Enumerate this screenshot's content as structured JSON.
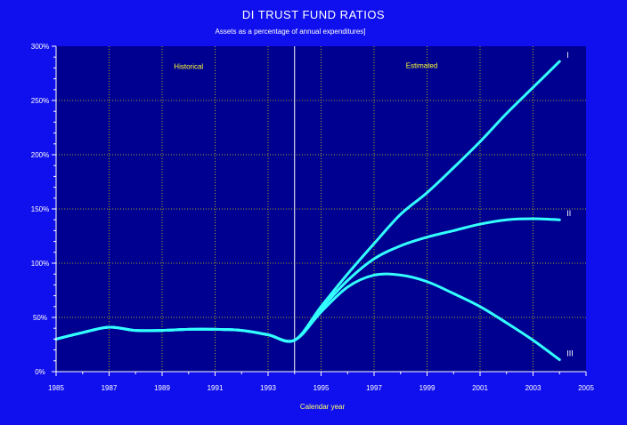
{
  "colors": {
    "background": "#1010ee",
    "plot_background": "#000090",
    "grid": "#d8d800",
    "series": "#33ffff",
    "text": "#ffffff",
    "annotation": "#ffff33"
  },
  "chart_data": {
    "type": "line",
    "title": "DI  TRUST  FUND RATIOS",
    "subtitle": "Assets as a percentage of annual expenditures]",
    "xlabel": "Calendar year",
    "ylabel": "",
    "xlim": [
      1985,
      2005
    ],
    "ylim": [
      0,
      300
    ],
    "grid": true,
    "x_ticks": [
      1985,
      1987,
      1989,
      1991,
      1993,
      1995,
      1997,
      1999,
      2001,
      2003,
      2005
    ],
    "x_tick_labels": [
      "1985",
      "1987",
      "1989",
      "1991",
      "1993",
      "1995",
      "1997",
      "1999",
      "2001",
      "2003",
      "2005"
    ],
    "y_ticks": [
      0,
      50,
      100,
      150,
      200,
      250,
      300
    ],
    "y_tick_labels": [
      "0%",
      "50%",
      "100%",
      "150%",
      "200%",
      "250%",
      "300%"
    ],
    "divider_x": 1994,
    "annotations": [
      {
        "text": "Historical",
        "x": 1990,
        "y": 279
      },
      {
        "text": "Estimated",
        "x": 1998.8,
        "y": 280
      }
    ],
    "series": [
      {
        "name": "I",
        "x": [
          1985,
          1986,
          1987,
          1988,
          1989,
          1990,
          1991,
          1992,
          1993,
          1994,
          1995,
          1996,
          1997,
          1998,
          1999,
          2000,
          2001,
          2002,
          2003,
          2004
        ],
        "values": [
          30,
          36,
          41,
          38,
          38,
          39,
          39,
          38,
          34,
          29,
          60,
          90,
          118,
          145,
          165,
          188,
          212,
          238,
          262,
          286
        ]
      },
      {
        "name": "II",
        "x": [
          1985,
          1986,
          1987,
          1988,
          1989,
          1990,
          1991,
          1992,
          1993,
          1994,
          1995,
          1996,
          1997,
          1998,
          1999,
          2000,
          2001,
          2002,
          2003,
          2004
        ],
        "values": [
          30,
          36,
          41,
          38,
          38,
          39,
          39,
          38,
          34,
          29,
          58,
          84,
          104,
          116,
          124,
          130,
          136,
          140,
          141,
          140
        ]
      },
      {
        "name": "III",
        "x": [
          1985,
          1986,
          1987,
          1988,
          1989,
          1990,
          1991,
          1992,
          1993,
          1994,
          1995,
          1996,
          1997,
          1998,
          1999,
          2000,
          2001,
          2002,
          2003,
          2004
        ],
        "values": [
          30,
          36,
          41,
          38,
          38,
          39,
          39,
          38,
          34,
          29,
          55,
          78,
          89,
          89,
          83,
          72,
          60,
          45,
          29,
          11
        ]
      }
    ]
  }
}
